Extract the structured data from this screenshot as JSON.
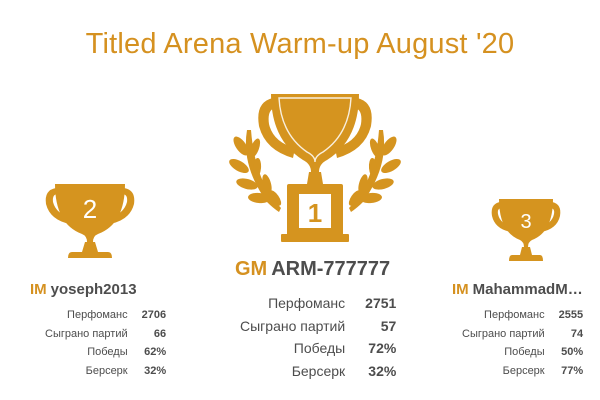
{
  "header": {
    "title": "Titled Arena Warm-up August '20"
  },
  "colors": {
    "gold": "#d5941f",
    "gold_dark": "#b77a13",
    "text": "#4d4d4d"
  },
  "podium": [
    {
      "rank": "1",
      "title": "GM",
      "username": "ARM-777777",
      "stats": [
        {
          "label": "Перфоманс",
          "value": "2751"
        },
        {
          "label": "Сыграно партий",
          "value": "57"
        },
        {
          "label": "Победы",
          "value": "72%"
        },
        {
          "label": "Берсерк",
          "value": "32%"
        }
      ]
    },
    {
      "rank": "2",
      "title": "IM",
      "username": "yoseph2013",
      "stats": [
        {
          "label": "Перфоманс",
          "value": "2706"
        },
        {
          "label": "Сыграно партий",
          "value": "66"
        },
        {
          "label": "Победы",
          "value": "62%"
        },
        {
          "label": "Берсерк",
          "value": "32%"
        }
      ]
    },
    {
      "rank": "3",
      "title": "IM",
      "username": "MahammadM…",
      "stats": [
        {
          "label": "Перфоманс",
          "value": "2555"
        },
        {
          "label": "Сыграно партий",
          "value": "74"
        },
        {
          "label": "Победы",
          "value": "50%"
        },
        {
          "label": "Берсерк",
          "value": "77%"
        }
      ]
    }
  ]
}
